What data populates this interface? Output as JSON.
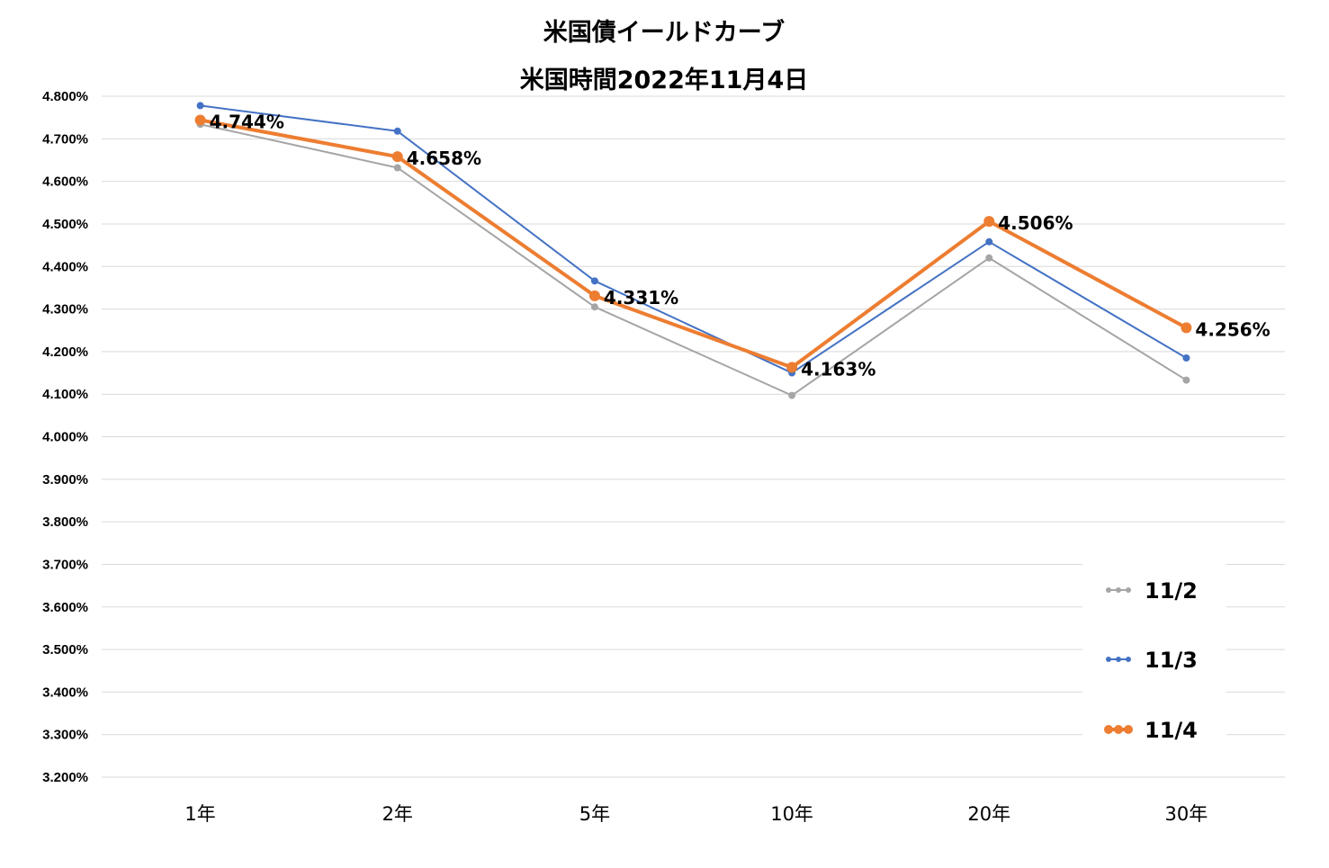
{
  "chart_data": {
    "type": "line",
    "title": "米国債イールドカーブ",
    "subtitle": "米国時間2022年11月4日",
    "xlabel": "",
    "ylabel": "",
    "categories": [
      "1年",
      "2年",
      "5年",
      "10年",
      "20年",
      "30年"
    ],
    "ylim": [
      3.2,
      4.8
    ],
    "ytick_step": 0.1,
    "ytick_labels": [
      "3.200%",
      "3.300%",
      "3.400%",
      "3.500%",
      "3.600%",
      "3.700%",
      "3.800%",
      "3.900%",
      "4.000%",
      "4.100%",
      "4.200%",
      "4.300%",
      "4.400%",
      "4.500%",
      "4.600%",
      "4.700%",
      "4.800%"
    ],
    "grid": true,
    "legend_position": "bottom-right",
    "series": [
      {
        "name": "11/2",
        "color": "#a5a5a5",
        "values": [
          4.734,
          4.632,
          4.305,
          4.097,
          4.42,
          4.133
        ],
        "data_labels": [
          "",
          "",
          "",
          "",
          "",
          ""
        ]
      },
      {
        "name": "11/3",
        "color": "#4472c4",
        "values": [
          4.778,
          4.718,
          4.366,
          4.15,
          4.458,
          4.185
        ],
        "data_labels": [
          "",
          "",
          "",
          "",
          "",
          ""
        ]
      },
      {
        "name": "11/4",
        "color": "#ed7d31",
        "values": [
          4.744,
          4.658,
          4.331,
          4.163,
          4.506,
          4.256
        ],
        "data_labels": [
          "4.744%",
          "4.658%",
          "4.331%",
          "4.163%",
          "4.506%",
          "4.256%"
        ]
      }
    ]
  }
}
